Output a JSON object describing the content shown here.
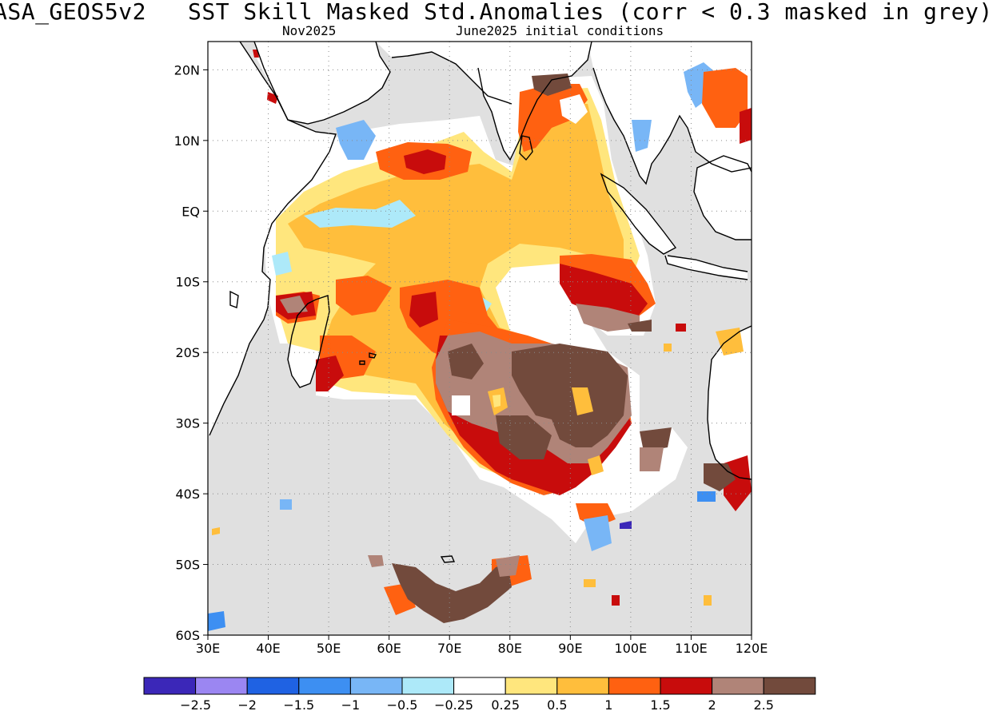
{
  "header": {
    "title": "ASA_GEOS5v2   SST Skill Masked Std.Anomalies (corr < 0.3 masked in grey)",
    "forecast_month": "Nov2025",
    "init_conditions": "June2025 initial conditions"
  },
  "map": {
    "lon_range": [
      30,
      120
    ],
    "lat_range": [
      -60,
      24
    ],
    "x_ticks": [
      {
        "value": 30,
        "label": "30E"
      },
      {
        "value": 40,
        "label": "40E"
      },
      {
        "value": 50,
        "label": "50E"
      },
      {
        "value": 60,
        "label": "60E"
      },
      {
        "value": 70,
        "label": "70E"
      },
      {
        "value": 80,
        "label": "80E"
      },
      {
        "value": 90,
        "label": "90E"
      },
      {
        "value": 100,
        "label": "100E"
      },
      {
        "value": 110,
        "label": "110E"
      },
      {
        "value": 120,
        "label": "120E"
      }
    ],
    "y_ticks": [
      {
        "value": 20,
        "label": "20N"
      },
      {
        "value": 10,
        "label": "10N"
      },
      {
        "value": 0,
        "label": "EQ"
      },
      {
        "value": -10,
        "label": "10S"
      },
      {
        "value": -20,
        "label": "20S"
      },
      {
        "value": -30,
        "label": "30S"
      },
      {
        "value": -40,
        "label": "40S"
      },
      {
        "value": -50,
        "label": "50S"
      },
      {
        "value": -60,
        "label": "60S"
      }
    ],
    "mask_color": "#e0e0e0",
    "land_fill": "#ffffff",
    "coast_color": "#000000",
    "grid": true
  },
  "colorbar": {
    "colors": [
      "#3b27b8",
      "#9b86f2",
      "#1f62e3",
      "#3d8ff2",
      "#78b6f6",
      "#ade9f9",
      "#ffffff",
      "#ffe67d",
      "#ffbe3c",
      "#ff6111",
      "#c80c0c",
      "#b08478",
      "#724a3c"
    ],
    "labels": [
      "−2.5",
      "−2",
      "−1.5",
      "−1",
      "−0.5",
      "−0.25",
      "0.25",
      "0.5",
      "1",
      "1.5",
      "2",
      "2.5"
    ]
  }
}
